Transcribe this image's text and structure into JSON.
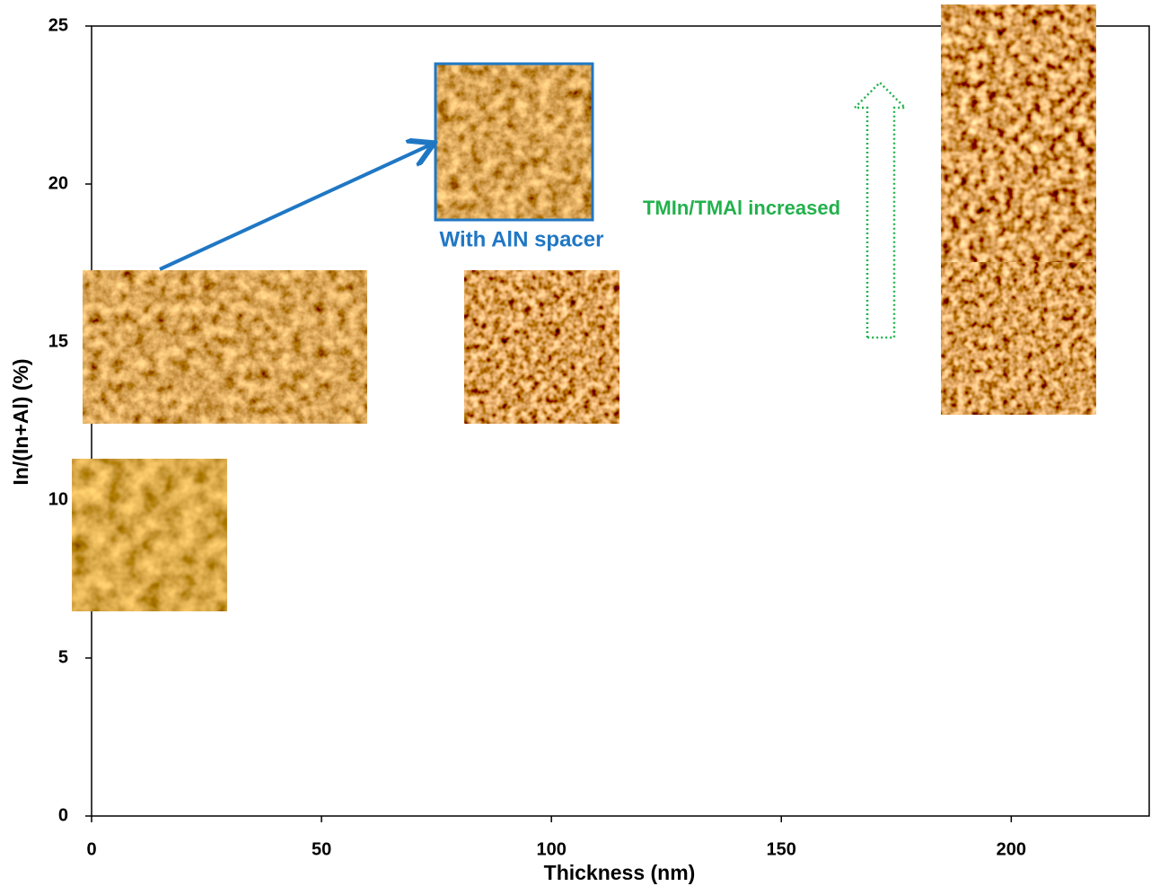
{
  "chart_data": {
    "type": "scatter",
    "x_label": "Thickness (nm)",
    "y_label": "In/(In+Al) (%)",
    "xlim": [
      0,
      230
    ],
    "xticks": [
      0,
      50,
      100,
      150,
      200
    ],
    "ylim": [
      0,
      25
    ],
    "yticks": [
      0,
      5,
      10,
      15,
      20,
      25
    ],
    "annotations": [
      "With AlN spacer",
      "TMIn/TMAl increased"
    ],
    "annotation_colors": [
      "#1f77c4",
      "#22b14c"
    ],
    "grid": false
  }
}
